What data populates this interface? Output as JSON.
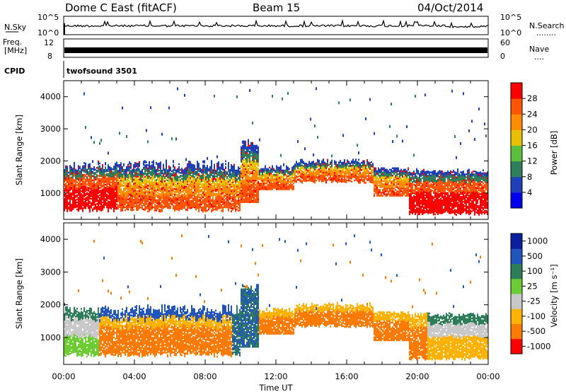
{
  "header": {
    "station": "Dome C East (fitACF)",
    "beam": "Beam 15",
    "date": "04/Oct/2014"
  },
  "sky_panel": {
    "left_label": "N.Sky",
    "right_label": "N.Search",
    "right_dots": "........",
    "left_ticks": [
      "10^5",
      "10^0"
    ],
    "right_ticks": [
      "10^5",
      "10^0"
    ]
  },
  "freq_panel": {
    "left_label_top": "Freq.",
    "left_label_bottom": "[MHz]",
    "right_label": "Nave",
    "right_dots": "....",
    "left_ticks": [
      "12",
      "8"
    ],
    "right_ticks": [
      "60",
      "0"
    ]
  },
  "cpid_panel": {
    "label": "CPID",
    "program": "twofsound 3501"
  },
  "range_axis": {
    "label": "Slant Range [km]",
    "ticks": [
      "4000",
      "3000",
      "2000",
      "1000"
    ]
  },
  "time_axis": {
    "label": "Time UT",
    "ticks": [
      "00:00",
      "04:00",
      "08:00",
      "12:00",
      "16:00",
      "20:00",
      "00:00"
    ]
  },
  "power_scale": {
    "label": "Power [dB]",
    "ticks": [
      "28",
      "24",
      "20",
      "16",
      "12",
      "8",
      "4"
    ],
    "colors": [
      "#0000ee",
      "#1f3fb8",
      "#2f7d5a",
      "#5cbf3c",
      "#e8c000",
      "#ff8c00",
      "#ff5500",
      "#ff0000"
    ]
  },
  "velocity_scale": {
    "label": "Velocity [m s⁻¹]",
    "ticks": [
      "1000",
      "500",
      "100",
      "25",
      "-25",
      "-100",
      "-500",
      "-1000"
    ],
    "colors": [
      "#0a1fa0",
      "#2255bb",
      "#2e7d5a",
      "#6ccc33",
      "#c8c8c8",
      "#ffb300",
      "#ff7a00",
      "#ff0000"
    ]
  },
  "chart_data": [
    {
      "type": "heatmap",
      "title": "Power",
      "x_range_hours": [
        0,
        24
      ],
      "y_range_km": [
        180,
        4500
      ],
      "ylabel": "Slant Range [km]",
      "xlabel": "Time UT",
      "colorbar_label": "Power [dB]",
      "colorbar_range_db": [
        0,
        32
      ]
    },
    {
      "type": "heatmap",
      "title": "Velocity",
      "x_range_hours": [
        0,
        24
      ],
      "y_range_km": [
        180,
        4500
      ],
      "ylabel": "Slant Range [km]",
      "xlabel": "Time UT",
      "colorbar_label": "Velocity [m s⁻¹]",
      "colorbar_levels": [
        1000,
        500,
        100,
        25,
        -25,
        -100,
        -500,
        -1000
      ]
    }
  ]
}
